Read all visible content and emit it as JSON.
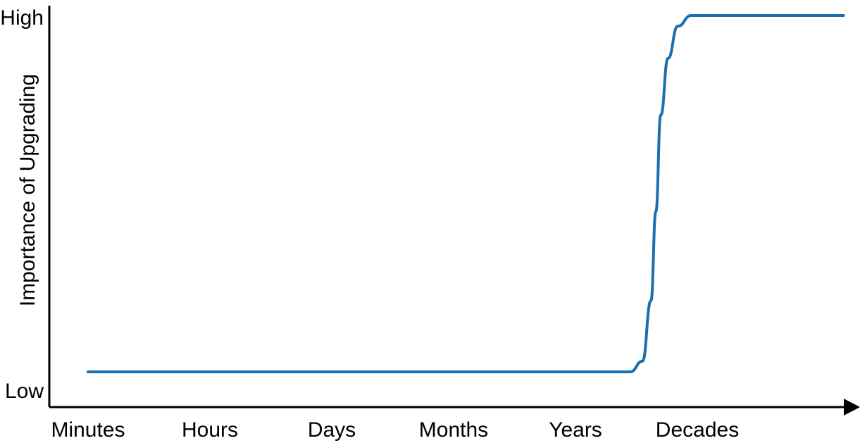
{
  "chart_data": {
    "type": "line",
    "ylabel": "Importance of Upgrading",
    "y_ticks": [
      "Low",
      "High"
    ],
    "x_categories": [
      "Minutes",
      "Hours",
      "Days",
      "Months",
      "Years",
      "Decades"
    ],
    "series": [
      {
        "color": "#1a6faf",
        "points": [
          {
            "x": 0.0,
            "y": 0.0
          },
          {
            "x": 4.45,
            "y": 0.0
          },
          {
            "x": 4.55,
            "y": 0.03
          },
          {
            "x": 4.62,
            "y": 0.2
          },
          {
            "x": 4.66,
            "y": 0.45
          },
          {
            "x": 4.7,
            "y": 0.72
          },
          {
            "x": 4.76,
            "y": 0.88
          },
          {
            "x": 4.84,
            "y": 0.97
          },
          {
            "x": 4.95,
            "y": 1.0
          },
          {
            "x": 6.2,
            "y": 1.0
          }
        ]
      }
    ],
    "y_range": [
      -0.095,
      1.0
    ],
    "x_range": [
      0,
      6.2
    ]
  }
}
